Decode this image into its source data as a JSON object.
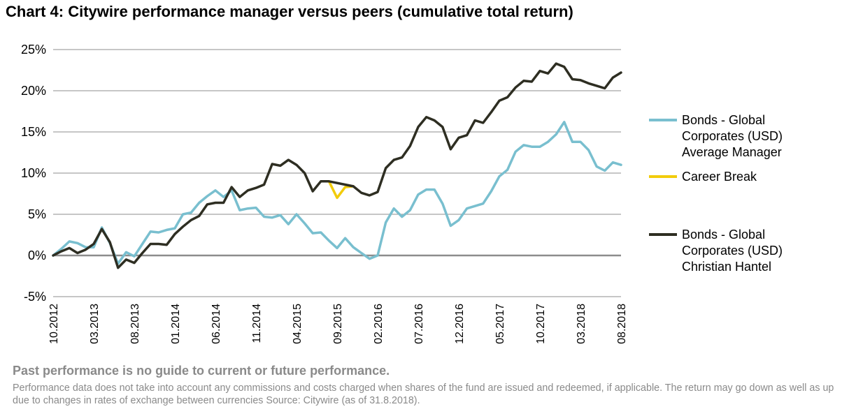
{
  "title": "Chart 4: Citywire performance manager versus peers (cumulative total return)",
  "footer": {
    "disclaimer": "Past performance is no guide to current or future performance.",
    "note": "Performance data does not take into account any commissions and costs charged when shares of the fund are issued and redeemed, if applicable. The return may go down as well as up due to changes in rates of exchange between currencies Source: Citywire (as of 31.8.2018)."
  },
  "colors": {
    "average": "#79bfcf",
    "career_break": "#f2cc0c",
    "hantel": "#2e2e22",
    "grid": "#8c8c8c",
    "zero_line": "#8c8c8c",
    "footer_text": "#8a8a8a"
  },
  "chart_data": {
    "type": "line",
    "ylim": [
      -5,
      25
    ],
    "y_ticks": [
      -5,
      0,
      5,
      10,
      15,
      20,
      25
    ],
    "y_tick_labels": [
      "-5%",
      "0%",
      "5%",
      "10%",
      "15%",
      "20%",
      "25%"
    ],
    "x_tick_labels": [
      "10.2012",
      "03.2013",
      "08.2013",
      "01.2014",
      "06.2014",
      "11.2014",
      "04.2015",
      "09.2015",
      "02.2016",
      "07.2016",
      "12.2016",
      "05.2017",
      "10.2017",
      "03.2018",
      "08.2018"
    ],
    "legend_position": "right",
    "series": [
      {
        "name": "Bonds - Global Corporates (USD) Average Manager",
        "legend_lines": [
          "Bonds - Global",
          "Corporates (USD)",
          "Average Manager"
        ],
        "color_key": "average",
        "x": [
          "10.2012",
          "11.2012",
          "12.2012",
          "01.2013",
          "02.2013",
          "03.2013",
          "04.2013",
          "05.2013",
          "06.2013",
          "07.2013",
          "08.2013",
          "09.2013",
          "10.2013",
          "11.2013",
          "12.2013",
          "01.2014",
          "02.2014",
          "03.2014",
          "04.2014",
          "05.2014",
          "06.2014",
          "07.2014",
          "08.2014",
          "09.2014",
          "10.2014",
          "11.2014",
          "12.2014",
          "01.2015",
          "02.2015",
          "03.2015",
          "04.2015",
          "05.2015",
          "06.2015",
          "07.2015",
          "08.2015",
          "09.2015",
          "10.2015",
          "11.2015",
          "12.2015",
          "01.2016",
          "02.2016",
          "03.2016",
          "04.2016",
          "05.2016",
          "06.2016",
          "07.2016",
          "08.2016",
          "09.2016",
          "10.2016",
          "11.2016",
          "12.2016",
          "01.2017",
          "02.2017",
          "03.2017",
          "04.2017",
          "05.2017",
          "06.2017",
          "07.2017",
          "08.2017",
          "09.2017",
          "10.2017",
          "11.2017",
          "12.2017",
          "01.2018",
          "02.2018",
          "03.2018",
          "04.2018",
          "05.2018",
          "06.2018",
          "07.2018",
          "08.2018"
        ],
        "values": [
          0.0,
          0.8,
          1.7,
          1.5,
          1.0,
          1.0,
          3.4,
          1.5,
          -1.0,
          0.4,
          -0.1,
          1.4,
          2.9,
          2.8,
          3.1,
          3.3,
          5.0,
          5.2,
          6.4,
          7.2,
          7.9,
          7.1,
          7.9,
          5.5,
          5.7,
          5.8,
          4.7,
          4.6,
          4.9,
          3.8,
          5.0,
          3.9,
          2.7,
          2.8,
          1.8,
          0.9,
          2.1,
          1.0,
          0.3,
          -0.4,
          0.0,
          4.0,
          5.7,
          4.7,
          5.5,
          7.4,
          8.0,
          8.0,
          6.3,
          3.6,
          4.3,
          5.7,
          6.0,
          6.3,
          7.8,
          9.6,
          10.4,
          12.6,
          13.4,
          13.2,
          13.2,
          13.8,
          14.7,
          16.2,
          13.8,
          13.8,
          12.8,
          10.8,
          10.3,
          11.3,
          11.0
        ]
      },
      {
        "name": "Career Break",
        "legend_lines": [
          "Career Break"
        ],
        "color_key": "career_break",
        "x": [
          "08.2015",
          "09.2015",
          "10.2015",
          "11.2015"
        ],
        "values": [
          9.0,
          7.0,
          8.3,
          8.4
        ]
      },
      {
        "name": "Bonds - Global Corporates (USD) Christian Hantel",
        "legend_lines": [
          "Bonds - Global",
          "Corporates (USD)",
          "Christian Hantel"
        ],
        "color_key": "hantel",
        "x": [
          "10.2012",
          "11.2012",
          "12.2012",
          "01.2013",
          "02.2013",
          "03.2013",
          "04.2013",
          "05.2013",
          "06.2013",
          "07.2013",
          "08.2013",
          "09.2013",
          "10.2013",
          "11.2013",
          "12.2013",
          "01.2014",
          "02.2014",
          "03.2014",
          "04.2014",
          "05.2014",
          "06.2014",
          "07.2014",
          "08.2014",
          "09.2014",
          "10.2014",
          "11.2014",
          "12.2014",
          "01.2015",
          "02.2015",
          "03.2015",
          "04.2015",
          "05.2015",
          "06.2015",
          "07.2015",
          "08.2015",
          "11.2015",
          "12.2015",
          "01.2016",
          "02.2016",
          "03.2016",
          "04.2016",
          "05.2016",
          "06.2016",
          "07.2016",
          "08.2016",
          "09.2016",
          "10.2016",
          "11.2016",
          "12.2016",
          "01.2017",
          "02.2017",
          "03.2017",
          "04.2017",
          "05.2017",
          "06.2017",
          "07.2017",
          "08.2017",
          "09.2017",
          "10.2017",
          "11.2017",
          "12.2017",
          "01.2018",
          "02.2018",
          "03.2018",
          "04.2018",
          "05.2018",
          "06.2018",
          "07.2018",
          "08.2018"
        ],
        "values": [
          0.0,
          0.5,
          0.9,
          0.3,
          0.7,
          1.4,
          3.2,
          1.6,
          -1.5,
          -0.5,
          -0.9,
          0.3,
          1.4,
          1.4,
          1.3,
          2.6,
          3.5,
          4.3,
          4.8,
          6.2,
          6.4,
          6.4,
          8.3,
          7.1,
          7.9,
          8.2,
          8.6,
          11.1,
          10.9,
          11.6,
          11.0,
          10.0,
          7.8,
          9.0,
          9.0,
          8.4,
          7.6,
          7.3,
          7.7,
          10.6,
          11.6,
          11.9,
          13.3,
          15.6,
          16.8,
          16.4,
          15.6,
          12.9,
          14.3,
          14.6,
          16.4,
          16.1,
          17.4,
          18.8,
          19.2,
          20.4,
          21.2,
          21.1,
          22.4,
          22.1,
          23.3,
          22.9,
          21.4,
          21.3,
          20.9,
          20.6,
          20.3,
          21.6,
          22.2
        ]
      }
    ]
  }
}
